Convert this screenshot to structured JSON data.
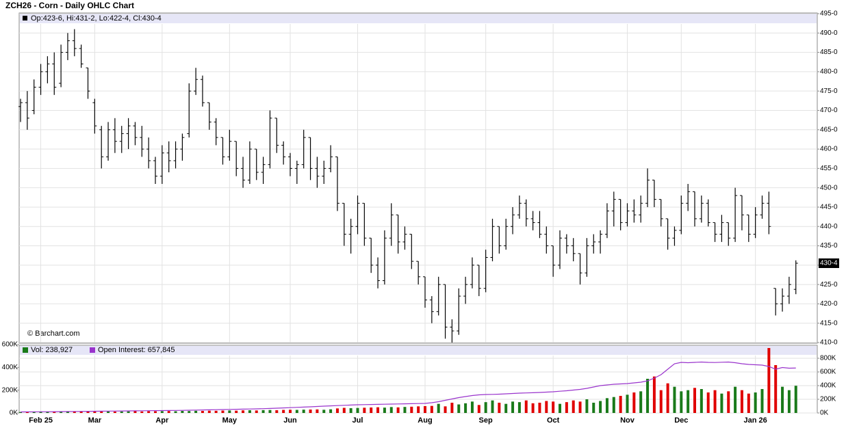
{
  "chart_data": {
    "type": "ohlc",
    "title": "ZCH26 - Corn - Daily OHLC Chart",
    "header": "Op:423-6, Hi:431-2, Lo:422-4, Cl:430-4",
    "watermark": "© Barchart.com",
    "last_label": "430-4",
    "bar_color": "#000000",
    "up_color": "#1a7a1a",
    "down_color": "#e00000",
    "grid": true,
    "categories": [
      null,
      null,
      null,
      "Feb 25",
      null,
      null,
      null,
      null,
      null,
      null,
      null,
      "Mar",
      null,
      null,
      null,
      null,
      null,
      null,
      null,
      null,
      null,
      "Apr",
      null,
      null,
      null,
      null,
      null,
      null,
      null,
      null,
      null,
      "May",
      null,
      null,
      null,
      null,
      null,
      null,
      null,
      null,
      "Jun",
      null,
      null,
      null,
      null,
      null,
      null,
      null,
      null,
      null,
      "Jul",
      null,
      null,
      null,
      null,
      null,
      null,
      null,
      null,
      null,
      "Aug",
      null,
      null,
      null,
      null,
      null,
      null,
      null,
      null,
      "Sep",
      null,
      null,
      null,
      null,
      null,
      null,
      null,
      null,
      null,
      "Oct",
      null,
      null,
      null,
      null,
      null,
      null,
      null,
      null,
      null,
      null,
      "Nov",
      null,
      null,
      null,
      null,
      null,
      null,
      null,
      "Dec",
      null,
      null,
      null,
      null,
      null,
      null,
      null,
      null,
      null,
      null,
      "Jan 26",
      null,
      null,
      null,
      null,
      null,
      null
    ],
    "ohlc": [
      [
        471,
        473,
        467,
        472
      ],
      [
        472,
        475,
        465,
        468
      ],
      [
        470,
        478,
        469,
        476
      ],
      [
        476,
        482,
        474,
        480
      ],
      [
        480,
        484,
        477,
        482
      ],
      [
        482,
        485,
        474,
        476
      ],
      [
        477,
        487,
        476,
        485
      ],
      [
        485,
        490,
        483,
        488
      ],
      [
        488,
        491,
        484,
        486
      ],
      [
        486,
        487,
        481,
        482
      ],
      [
        481,
        481,
        473,
        475
      ],
      [
        472,
        473,
        464,
        466
      ],
      [
        465,
        466,
        455,
        458
      ],
      [
        458,
        467,
        457,
        465
      ],
      [
        465,
        468,
        459,
        462
      ],
      [
        462,
        466,
        459,
        464
      ],
      [
        464,
        468,
        460,
        466
      ],
      [
        466,
        467,
        461,
        463
      ],
      [
        463,
        466,
        458,
        460
      ],
      [
        460,
        463,
        455,
        457
      ],
      [
        457,
        458,
        451,
        453
      ],
      [
        453,
        461,
        451,
        459
      ],
      [
        459,
        462,
        454,
        457
      ],
      [
        457,
        462,
        455,
        460
      ],
      [
        460,
        464,
        457,
        463
      ],
      [
        464,
        477,
        463,
        475
      ],
      [
        475,
        481,
        474,
        478
      ],
      [
        478,
        479,
        471,
        472
      ],
      [
        472,
        472,
        465,
        467
      ],
      [
        467,
        468,
        461,
        463
      ],
      [
        463,
        463,
        456,
        458
      ],
      [
        458,
        465,
        457,
        462
      ],
      [
        462,
        462,
        453,
        455
      ],
      [
        455,
        458,
        450,
        452
      ],
      [
        452,
        462,
        451,
        460
      ],
      [
        460,
        460,
        452,
        454
      ],
      [
        454,
        458,
        451,
        456
      ],
      [
        456,
        470,
        455,
        468
      ],
      [
        468,
        468,
        459,
        461
      ],
      [
        461,
        462,
        456,
        458
      ],
      [
        458,
        459,
        453,
        455
      ],
      [
        455,
        457,
        451,
        456
      ],
      [
        456,
        465,
        455,
        463
      ],
      [
        463,
        463,
        452,
        455
      ],
      [
        455,
        458,
        450,
        453
      ],
      [
        453,
        457,
        451,
        455
      ],
      [
        455,
        461,
        454,
        458
      ],
      [
        458,
        458,
        444,
        446
      ],
      [
        446,
        446,
        435,
        438
      ],
      [
        438,
        442,
        433,
        440
      ],
      [
        440,
        448,
        438,
        446
      ],
      [
        446,
        446,
        435,
        437
      ],
      [
        437,
        437,
        428,
        430
      ],
      [
        430,
        432,
        424,
        426
      ],
      [
        426,
        439,
        425,
        437
      ],
      [
        437,
        446,
        435,
        443
      ],
      [
        443,
        443,
        433,
        436
      ],
      [
        436,
        440,
        434,
        438
      ],
      [
        438,
        438,
        429,
        431
      ],
      [
        431,
        431,
        425,
        427
      ],
      [
        427,
        427,
        419,
        421
      ],
      [
        421,
        422,
        415,
        418
      ],
      [
        418,
        427,
        417,
        425
      ],
      [
        425,
        425,
        411,
        414
      ],
      [
        414,
        416,
        410,
        413
      ],
      [
        413,
        424,
        412,
        422
      ],
      [
        422,
        427,
        420,
        425
      ],
      [
        425,
        432,
        424,
        430
      ],
      [
        430,
        430,
        422,
        424
      ],
      [
        424,
        434,
        423,
        432
      ],
      [
        432,
        442,
        431,
        440
      ],
      [
        440,
        440,
        433,
        435
      ],
      [
        435,
        442,
        434,
        440
      ],
      [
        440,
        445,
        438,
        443
      ],
      [
        443,
        448,
        442,
        446
      ],
      [
        446,
        447,
        440,
        442
      ],
      [
        442,
        444,
        439,
        441
      ],
      [
        441,
        444,
        437,
        438
      ],
      [
        438,
        440,
        433,
        435
      ],
      [
        435,
        435,
        427,
        430
      ],
      [
        430,
        439,
        429,
        437
      ],
      [
        437,
        438,
        433,
        435
      ],
      [
        435,
        437,
        431,
        433
      ],
      [
        433,
        433,
        425,
        428
      ],
      [
        428,
        437,
        427,
        435
      ],
      [
        435,
        438,
        433,
        436
      ],
      [
        436,
        439,
        433,
        438
      ],
      [
        438,
        446,
        437,
        444
      ],
      [
        444,
        449,
        440,
        447
      ],
      [
        447,
        447,
        439,
        441
      ],
      [
        441,
        446,
        440,
        444
      ],
      [
        444,
        447,
        441,
        443
      ],
      [
        443,
        448,
        441,
        446
      ],
      [
        446,
        455,
        445,
        452
      ],
      [
        452,
        452,
        445,
        447
      ],
      [
        447,
        447,
        440,
        442
      ],
      [
        442,
        442,
        434,
        437
      ],
      [
        437,
        440,
        435,
        439
      ],
      [
        439,
        448,
        438,
        446
      ],
      [
        446,
        451,
        444,
        449
      ],
      [
        449,
        449,
        440,
        442
      ],
      [
        442,
        448,
        441,
        446
      ],
      [
        446,
        447,
        440,
        441
      ],
      [
        441,
        441,
        436,
        438
      ],
      [
        438,
        443,
        436,
        441
      ],
      [
        441,
        441,
        435,
        437
      ],
      [
        437,
        450,
        436,
        448
      ],
      [
        448,
        448,
        439,
        443
      ],
      [
        443,
        443,
        436,
        438
      ],
      [
        438,
        445,
        437,
        443
      ],
      [
        443,
        448,
        442,
        446
      ],
      [
        446,
        449,
        438,
        440
      ],
      [
        424,
        424,
        417,
        420
      ],
      [
        420,
        424,
        418,
        422
      ],
      [
        422,
        427,
        420,
        425
      ],
      [
        423.75,
        431.25,
        422.5,
        430.5
      ]
    ],
    "ylim": [
      410,
      495
    ],
    "yticks": [
      {
        "value": 410,
        "label": "410-0"
      },
      {
        "value": 415,
        "label": "415-0"
      },
      {
        "value": 420,
        "label": "420-0"
      },
      {
        "value": 425,
        "label": "425-0"
      },
      {
        "value": 430,
        "label": "430-0"
      },
      {
        "value": 435,
        "label": "435-0"
      },
      {
        "value": 440,
        "label": "440-0"
      },
      {
        "value": 445,
        "label": "445-0"
      },
      {
        "value": 450,
        "label": "450-0"
      },
      {
        "value": 455,
        "label": "455-0"
      },
      {
        "value": 460,
        "label": "460-0"
      },
      {
        "value": 465,
        "label": "465-0"
      },
      {
        "value": 470,
        "label": "470-0"
      },
      {
        "value": 475,
        "label": "475-0"
      },
      {
        "value": 480,
        "label": "480-0"
      },
      {
        "value": 485,
        "label": "485-0"
      },
      {
        "value": 490,
        "label": "490-0"
      },
      {
        "value": 495,
        "label": "495-0"
      }
    ],
    "volume": {
      "legend": "Vol: 238,927",
      "values": [
        8,
        9,
        10,
        11,
        9,
        12,
        10,
        11,
        13,
        12,
        14,
        15,
        13,
        14,
        12,
        13,
        14,
        15,
        13,
        16,
        15,
        16,
        17,
        15,
        18,
        17,
        19,
        18,
        20,
        19,
        21,
        22,
        20,
        23,
        24,
        22,
        25,
        26,
        24,
        27,
        28,
        27,
        29,
        30,
        31,
        28,
        32,
        40,
        45,
        42,
        44,
        46,
        48,
        50,
        47,
        52,
        49,
        53,
        55,
        58,
        60,
        62,
        80,
        58,
        90,
        75,
        85,
        100,
        70,
        95,
        110,
        90,
        80,
        100,
        95,
        110,
        85,
        90,
        105,
        100,
        80,
        95,
        110,
        100,
        120,
        90,
        105,
        130,
        140,
        150,
        160,
        180,
        190,
        300,
        320,
        200,
        260,
        230,
        190,
        200,
        220,
        210,
        180,
        200,
        170,
        190,
        230,
        200,
        170,
        180,
        210,
        570,
        420,
        230,
        200,
        238.927
      ],
      "ylim": [
        0,
        600
      ],
      "yticks": [
        {
          "value": 0,
          "label": "0K"
        },
        {
          "value": 200,
          "label": "200K"
        },
        {
          "value": 400,
          "label": "400K"
        },
        {
          "value": 600,
          "label": "600K"
        }
      ]
    },
    "open_interest": {
      "legend": "Open Interest: 657,845",
      "color": "#9933cc",
      "values": [
        15,
        16,
        17,
        18,
        18,
        19,
        20,
        21,
        22,
        23,
        24,
        25,
        26,
        27,
        28,
        29,
        30,
        31,
        32,
        33,
        34,
        35,
        36,
        37,
        38,
        40,
        42,
        44,
        46,
        48,
        50,
        52,
        54,
        56,
        58,
        60,
        63,
        66,
        70,
        74,
        78,
        82,
        86,
        90,
        95,
        100,
        104,
        108,
        112,
        116,
        120,
        122,
        124,
        126,
        128,
        130,
        132,
        134,
        136,
        138,
        140,
        150,
        165,
        185,
        205,
        225,
        240,
        255,
        265,
        270,
        272,
        275,
        280,
        285,
        290,
        293,
        296,
        300,
        305,
        310,
        318,
        325,
        335,
        345,
        360,
        380,
        400,
        410,
        420,
        425,
        430,
        440,
        450,
        470,
        510,
        560,
        640,
        720,
        740,
        735,
        740,
        745,
        740,
        738,
        742,
        745,
        735,
        720,
        710,
        705,
        700,
        680,
        640,
        665,
        655,
        657.845
      ],
      "ylim": [
        0,
        800
      ],
      "yticks": [
        {
          "value": 0,
          "label": "0K"
        },
        {
          "value": 200,
          "label": "200K"
        },
        {
          "value": 400,
          "label": "400K"
        },
        {
          "value": 600,
          "label": "600K"
        },
        {
          "value": 800,
          "label": "800K"
        }
      ]
    }
  }
}
